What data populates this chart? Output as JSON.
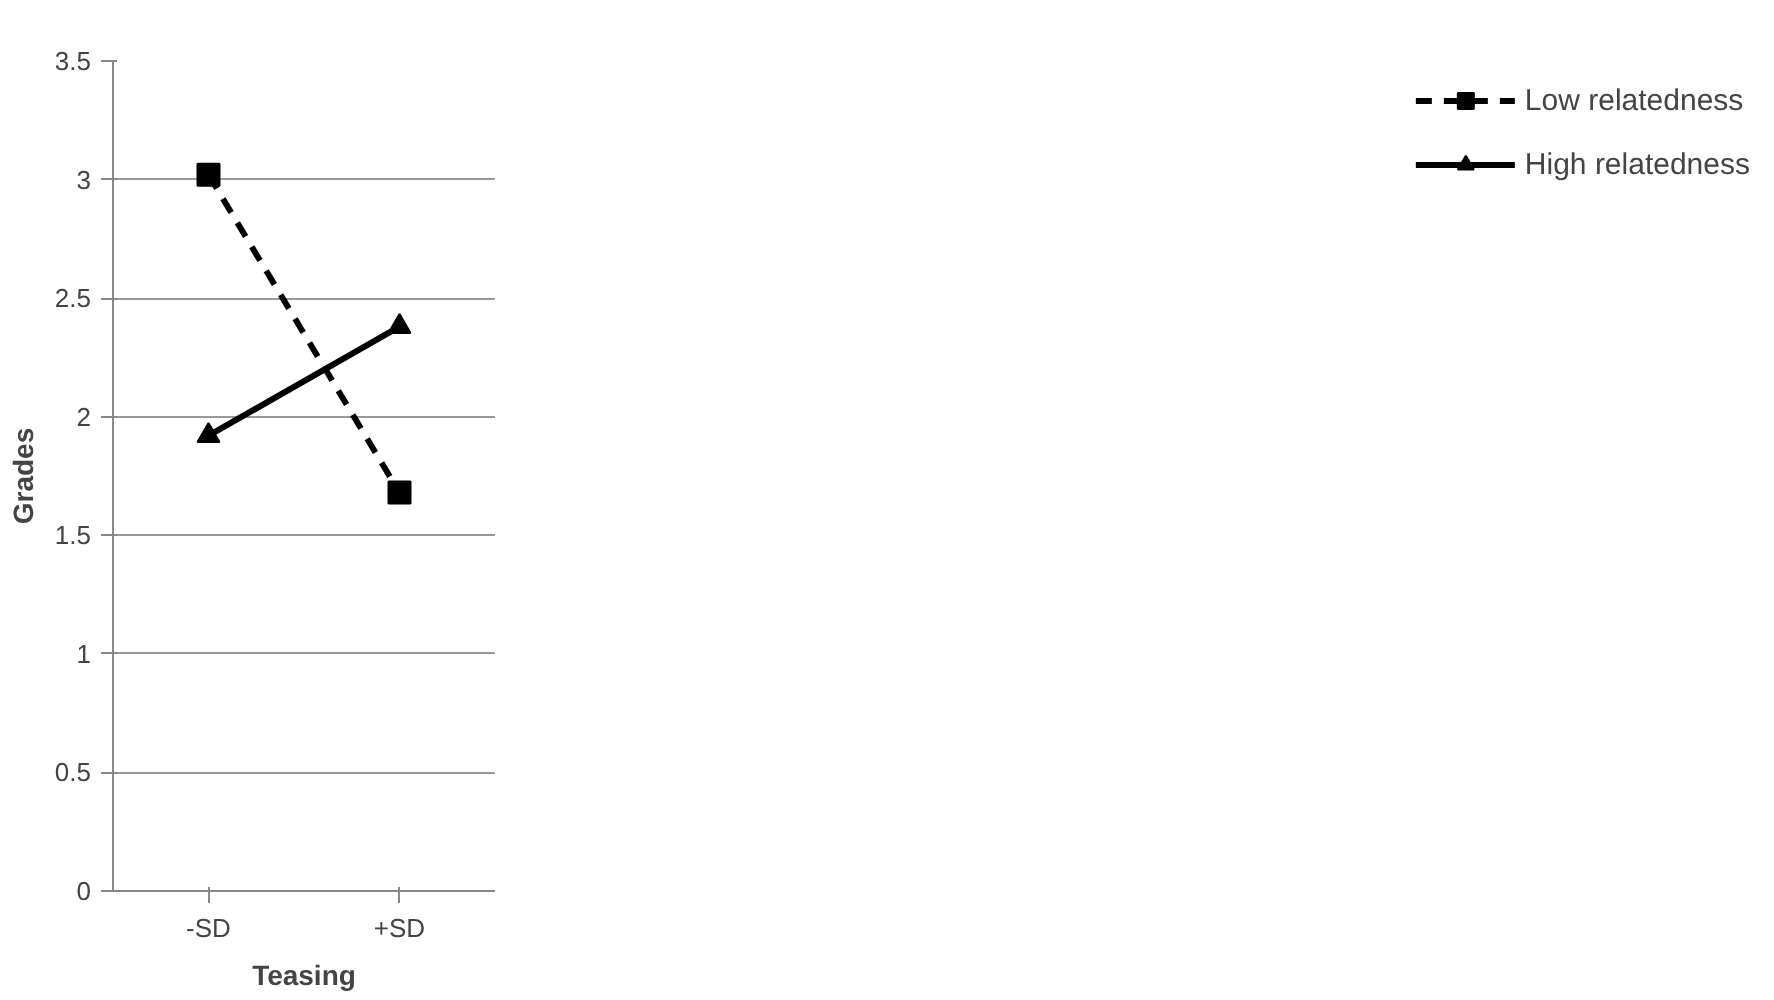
{
  "chart_data": {
    "type": "line",
    "xlabel": "Teasing",
    "ylabel": "Grades",
    "categories": [
      "-SD",
      "+SD"
    ],
    "series": [
      {
        "name": "Low relatedness",
        "color": "#000000",
        "values": [
          3.02,
          1.68
        ],
        "marker": "square",
        "line_style": "dashed"
      },
      {
        "name": "High relatedness",
        "color": "#000000",
        "values": [
          1.92,
          2.38
        ],
        "marker": "triangle",
        "line_style": "solid"
      }
    ],
    "ylim": [
      0,
      3.5
    ],
    "yticks": [
      0,
      0.5,
      1,
      1.5,
      2,
      2.5,
      3,
      3.5
    ],
    "grid": "y",
    "legend": "right"
  }
}
